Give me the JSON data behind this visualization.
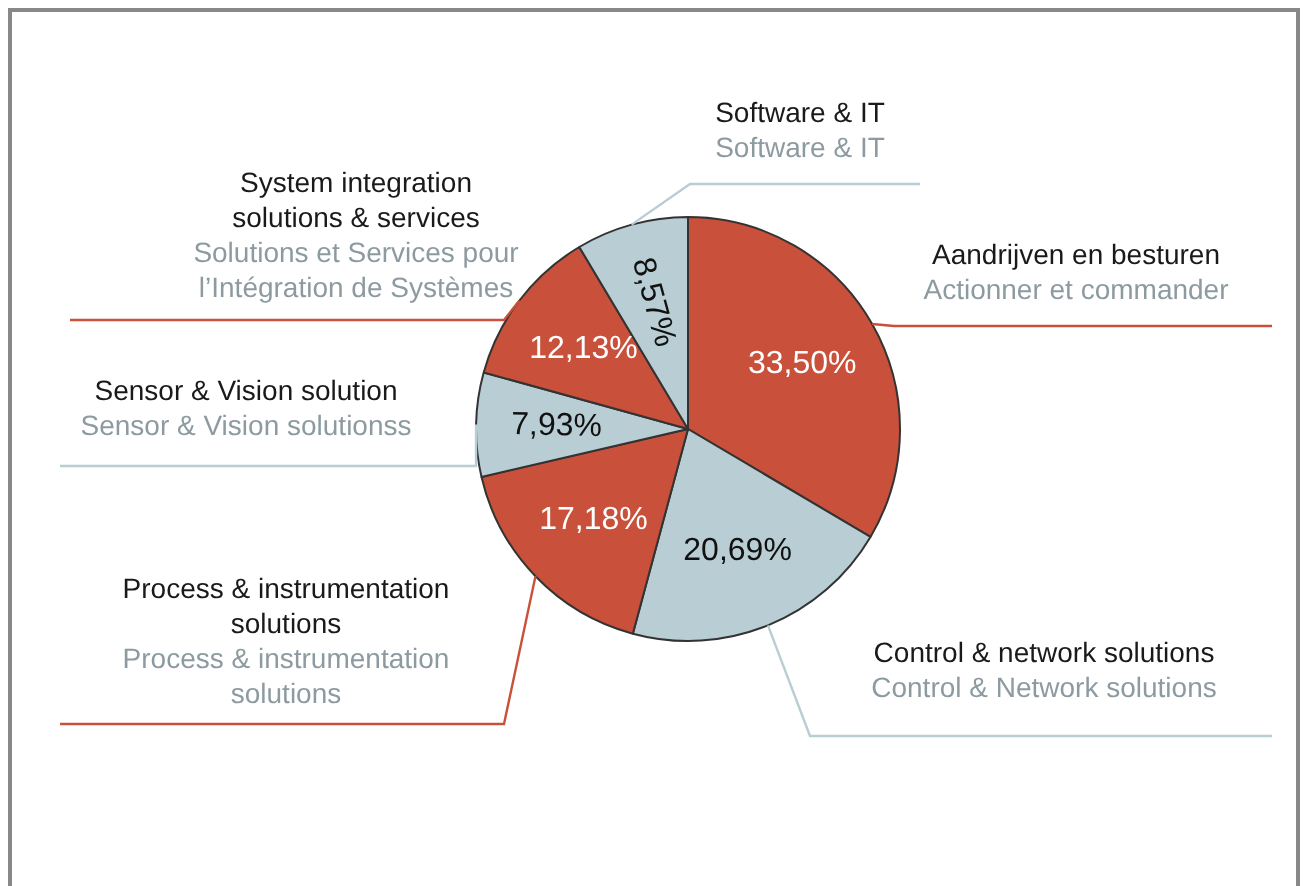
{
  "chart_data": {
    "type": "pie",
    "categories": [
      "Aandrijven en besturen",
      "Control & network solutions",
      "Process & instrumentation solutions",
      "Sensor & Vision solution",
      "System integration solutions & services",
      "Software & IT"
    ],
    "values": [
      33.5,
      20.69,
      17.18,
      7.93,
      12.13,
      8.57
    ],
    "value_labels": [
      "33,50%",
      "20,69%",
      "17,18%",
      "7,93%",
      "12,13%",
      "8,57%"
    ],
    "colors": [
      "#c9503a",
      "#b8cdd4",
      "#c9503a",
      "#b8cdd4",
      "#c9503a",
      "#b8cdd4"
    ],
    "annotations": [
      "Actionner et commander",
      "Control & Network solutions",
      "Process & instrumentation solutions",
      "Sensor & Vision solutionss",
      "Solutions et Services pour l’Intégration de Systèmes",
      "Software & IT"
    ],
    "legend": false
  }
}
